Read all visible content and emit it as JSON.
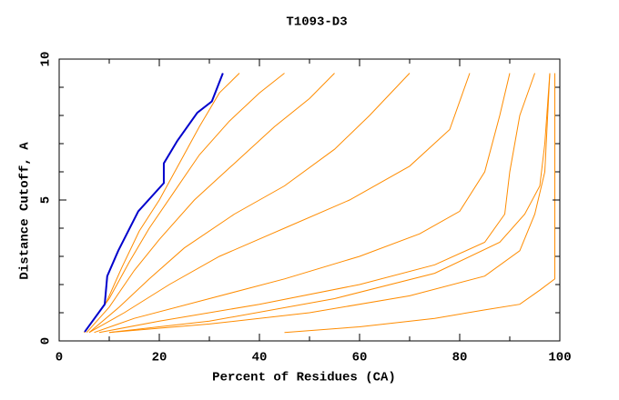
{
  "chart_data": {
    "type": "line",
    "title": "T1093-D3",
    "x_label": "Percent of Residues (CA)",
    "y_label": "Distance Cutoff, A",
    "xlim": [
      0,
      100
    ],
    "ylim": [
      0,
      10
    ],
    "xticks": [
      0,
      20,
      40,
      60,
      80,
      100
    ],
    "yticks": [
      0,
      5,
      10
    ],
    "xminorticks": [
      10,
      30,
      50,
      70,
      90
    ],
    "yminorticks": [
      1,
      2,
      3,
      4,
      6,
      7,
      8,
      9
    ],
    "series": [
      {
        "color": "#ff8c00",
        "x": [
          45,
          60,
          75,
          85,
          92,
          96,
          99,
          99
        ],
        "values": [
          0.3,
          0.5,
          0.8,
          1.1,
          1.3,
          1.8,
          2.2,
          9.5
        ]
      },
      {
        "color": "#ff8c00",
        "x": [
          10,
          30,
          50,
          70,
          85,
          92,
          95,
          97,
          98
        ],
        "values": [
          0.3,
          0.6,
          1.0,
          1.6,
          2.3,
          3.2,
          4.5,
          6,
          9.5
        ]
      },
      {
        "color": "#ff8c00",
        "x": [
          10,
          30,
          55,
          75,
          88,
          93,
          96,
          97,
          98
        ],
        "values": [
          0.3,
          0.7,
          1.5,
          2.4,
          3.5,
          4.5,
          5.5,
          7,
          9.5
        ]
      },
      {
        "color": "#ff8c00",
        "x": [
          8,
          20,
          40,
          60,
          75,
          85,
          89,
          90,
          92,
          95
        ],
        "values": [
          0.3,
          0.7,
          1.3,
          2,
          2.7,
          3.5,
          4.5,
          6,
          8,
          9.5
        ]
      },
      {
        "color": "#ff8c00",
        "x": [
          7,
          15,
          30,
          45,
          60,
          72,
          80,
          85,
          88,
          90
        ],
        "values": [
          0.3,
          0.8,
          1.5,
          2.2,
          3,
          3.8,
          4.6,
          6,
          8,
          9.5
        ]
      },
      {
        "color": "#ff8c00",
        "x": [
          6,
          13,
          22,
          32,
          45,
          58,
          70,
          78,
          82
        ],
        "values": [
          0.3,
          1,
          2,
          3,
          4,
          5,
          6.2,
          7.5,
          9.5
        ]
      },
      {
        "color": "#ff8c00",
        "x": [
          6,
          12,
          18,
          25,
          35,
          45,
          55,
          62,
          70
        ],
        "values": [
          0.3,
          1.2,
          2.2,
          3.3,
          4.5,
          5.5,
          6.8,
          8,
          9.5
        ]
      },
      {
        "color": "#ff8c00",
        "x": [
          5.5,
          10,
          15,
          20,
          27,
          35,
          43,
          50,
          55
        ],
        "values": [
          0.3,
          1.2,
          2.5,
          3.6,
          5,
          6.3,
          7.6,
          8.6,
          9.5
        ]
      },
      {
        "color": "#ff8c00",
        "x": [
          5,
          10,
          14,
          18,
          23,
          28,
          34,
          40,
          45
        ],
        "values": [
          0.3,
          1.5,
          2.8,
          4,
          5.3,
          6.6,
          7.8,
          8.8,
          9.5
        ]
      },
      {
        "color": "#ff8c00",
        "x": [
          5,
          9.5,
          12.5,
          16,
          20,
          24,
          28,
          32,
          36
        ],
        "values": [
          0.3,
          1.4,
          2.6,
          3.9,
          5,
          6.3,
          7.6,
          8.8,
          9.5
        ]
      },
      {
        "color": "#0000cc",
        "x": [
          5.1,
          9.1,
          9.6,
          11.8,
          15.8,
          20.9,
          20.9,
          23.6,
          27.6,
          30.5,
          32.7
        ],
        "values": [
          0.32,
          1.3,
          2.3,
          3.2,
          4.6,
          5.6,
          6.3,
          7.1,
          8.1,
          8.5,
          9.5
        ]
      }
    ]
  }
}
